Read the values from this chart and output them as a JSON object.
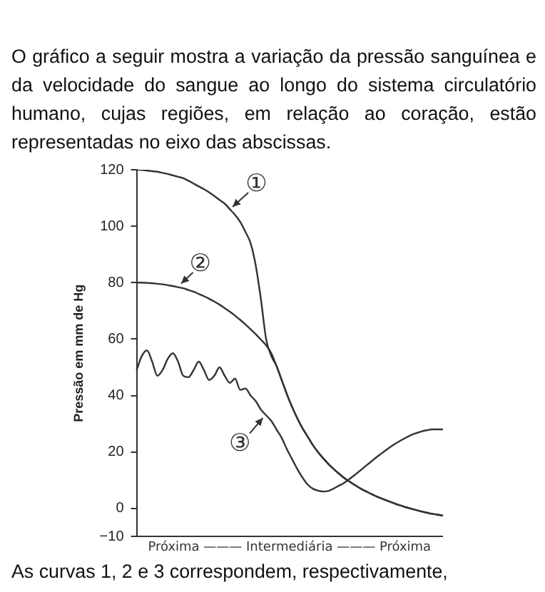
{
  "chart_data": {
    "type": "line",
    "title": "O gráfico a seguir mostra a variação da pressão sanguínea e da velocidade do sangue ao longo do sistema circulatório humano, cujas regiões, em relação ao coração, estão representadas no eixo das abscissas.",
    "annotations": [
      "As curvas 1, 2 e 3 correspondem, respectivamente,",
      "①",
      "②",
      "③"
    ],
    "xlabel": "Próxima ——— Intermediária ——— Próxima",
    "ylabel": "Pressão em mm de Hg",
    "categories": [
      null,
      null,
      null,
      null,
      null,
      null,
      null,
      null,
      null,
      null,
      null,
      null,
      null,
      null,
      null,
      null,
      null,
      null,
      null,
      null,
      null,
      null,
      null,
      null,
      null,
      null,
      null,
      null,
      null,
      null,
      null,
      null,
      null,
      null,
      null,
      null,
      null,
      null,
      null,
      null,
      null,
      null,
      null,
      null,
      null,
      null,
      null,
      null,
      null,
      null,
      null,
      null,
      null,
      null,
      null,
      null,
      null,
      null,
      null,
      null
    ],
    "series": [
      {
        "color": "#333333",
        "values": [
          120,
          119.9,
          119.7,
          119.5,
          119.3,
          118.9,
          118.5,
          118,
          117.5,
          117,
          116.1,
          115.1,
          114.1,
          113.1,
          112,
          110.7,
          109.3,
          108,
          106,
          104,
          101.5,
          98,
          94,
          86,
          74,
          60,
          54,
          50.5,
          45.5,
          40.5,
          36,
          32,
          28.5,
          25.5,
          22.5,
          20,
          17.8,
          15.8,
          14,
          12.4,
          10.9,
          9.6,
          8.4,
          7.3,
          6.3,
          5.4,
          4.5,
          3.7,
          3,
          2.3,
          1.6,
          1,
          0.4,
          -0.1,
          -0.6,
          -1.1,
          -1.5,
          -1.9,
          -2.2,
          -2.5
        ]
      },
      {
        "color": "#333333",
        "values": [
          80,
          80,
          79.9,
          79.8,
          79.6,
          79.4,
          79.1,
          78.8,
          78.4,
          78,
          77.4,
          76.8,
          76,
          75.2,
          74.3,
          73.3,
          72.2,
          71,
          69.7,
          68.3,
          66.8,
          65.2,
          63.5,
          61.7,
          59.8,
          57.8,
          55,
          50.5,
          45.5,
          40.5,
          36,
          32,
          28.5,
          25.5,
          22.5,
          20,
          17.8,
          15.8,
          14,
          12.4,
          10.9,
          9.6,
          8.4,
          7.3,
          6.3,
          5.4,
          4.5,
          3.7,
          3,
          2.3,
          1.6,
          1,
          0.4,
          -0.1,
          -0.6,
          -1.1,
          -1.5,
          -1.9,
          -2.2,
          -2.5
        ]
      },
      {
        "color": "#333333",
        "values": [
          49,
          54,
          56,
          52,
          47,
          49,
          53,
          55,
          52,
          47,
          46.5,
          49,
          52,
          49,
          45.5,
          47,
          50,
          47,
          44.5,
          46,
          42,
          42.5,
          40,
          38,
          35,
          33,
          31,
          28,
          25,
          21,
          17.5,
          14,
          11,
          8.5,
          7,
          6.3,
          6,
          6.2,
          7,
          8,
          9,
          10.3,
          11.7,
          13.2,
          14.7,
          16.2,
          17.7,
          19.1,
          20.5,
          21.8,
          23,
          24.1,
          25.1,
          26,
          26.7,
          27.3,
          27.7,
          28,
          28,
          28
        ]
      }
    ],
    "ylim": [
      -10,
      120
    ],
    "yticks": [
      -10,
      0,
      20,
      40,
      60,
      80,
      100,
      120
    ],
    "grid": false,
    "legend": false,
    "tick_labels": "y",
    "marker": "none",
    "line_style": "solid"
  }
}
